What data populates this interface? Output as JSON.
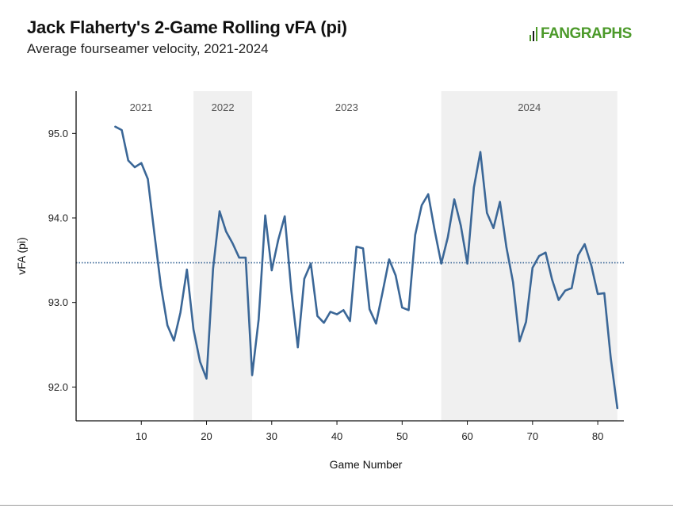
{
  "header": {
    "title": "Jack Flaherty's 2-Game Rolling vFA (pi)",
    "subtitle": "Average fourseamer velocity, 2021-2024",
    "brand": "FANGRAPHS"
  },
  "colors": {
    "line": "#3b6797",
    "band": "#f0f0f0",
    "reference": "#3b6797",
    "brand": "#4c9a2a"
  },
  "chart_data": {
    "type": "line",
    "title": "Jack Flaherty's 2-Game Rolling vFA (pi)",
    "subtitle": "Average fourseamer velocity, 2021-2024",
    "xlabel": "Game Number",
    "ylabel": "vFA (pi)",
    "xlim": [
      0,
      84
    ],
    "ylim": [
      91.6,
      95.5
    ],
    "xticks": [
      10,
      20,
      30,
      40,
      50,
      60,
      70,
      80
    ],
    "yticks": [
      92.0,
      93.0,
      94.0,
      95.0
    ],
    "ytick_labels": [
      "92.0",
      "93.0",
      "94.0",
      "95.0"
    ],
    "grid": false,
    "reference_line": {
      "y": 93.47,
      "style": "dotted"
    },
    "seasons": [
      {
        "label": "2021",
        "start": 0,
        "end": 18,
        "shaded": false
      },
      {
        "label": "2022",
        "start": 18,
        "end": 27,
        "shaded": true
      },
      {
        "label": "2023",
        "start": 27,
        "end": 56,
        "shaded": false
      },
      {
        "label": "2024",
        "start": 56,
        "end": 83,
        "shaded": true
      }
    ],
    "series": [
      {
        "x": [
          6,
          7,
          8,
          9,
          10,
          11,
          12,
          13,
          14,
          15,
          16,
          17,
          18,
          19,
          20,
          21,
          22,
          23,
          24,
          25,
          26,
          27,
          28,
          29,
          30,
          31,
          32,
          33,
          34,
          35,
          36,
          37,
          38,
          39,
          40,
          41,
          42,
          43,
          44,
          45,
          46,
          47,
          48,
          49,
          50,
          51,
          52,
          53,
          54,
          55,
          56,
          57,
          58,
          59,
          60,
          61,
          62,
          63,
          64,
          65,
          66,
          67,
          68,
          69,
          70,
          71,
          72,
          73,
          74,
          75,
          76,
          77,
          78,
          79,
          80,
          81,
          82,
          83
        ],
        "values": [
          95.08,
          95.04,
          94.68,
          94.6,
          94.65,
          94.46,
          93.82,
          93.2,
          92.73,
          92.55,
          92.88,
          93.39,
          92.68,
          92.3,
          92.1,
          93.4,
          94.08,
          93.84,
          93.7,
          93.53,
          93.53,
          92.14,
          92.8,
          94.03,
          93.38,
          93.74,
          94.02,
          93.14,
          92.47,
          93.28,
          93.46,
          92.84,
          92.76,
          92.89,
          92.86,
          92.91,
          92.78,
          93.66,
          93.64,
          92.92,
          92.75,
          93.12,
          93.51,
          93.32,
          92.94,
          92.91,
          93.8,
          94.15,
          94.28,
          93.85,
          93.46,
          93.77,
          94.22,
          93.91,
          93.46,
          94.36,
          94.78,
          94.06,
          93.88,
          94.19,
          93.65,
          93.24,
          92.54,
          92.77,
          93.41,
          93.55,
          93.59,
          93.27,
          93.03,
          93.14,
          93.17,
          93.56,
          93.69,
          93.44,
          93.1,
          93.11,
          92.34,
          91.75
        ]
      }
    ]
  }
}
